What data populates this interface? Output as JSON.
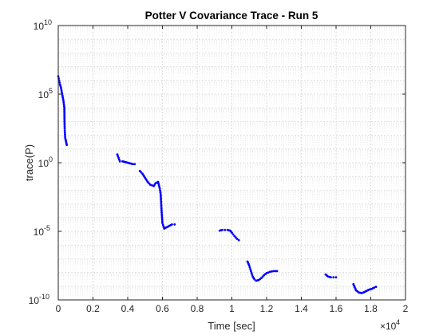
{
  "chart_data": {
    "type": "scatter",
    "title": "Potter V Covariance Trace - Run 5",
    "xlabel": "Time [sec]",
    "ylabel": "trace(P)",
    "x_exponent_label": "×10",
    "x_exponent_power": "4",
    "xlim": [
      0,
      20000
    ],
    "ylim_exponent": [
      -10,
      10
    ],
    "yscale": "log",
    "grid": true,
    "marker_color": "#0000ff",
    "x_ticks": [
      {
        "value": 0,
        "label": "0"
      },
      {
        "value": 2000,
        "label": "0.2"
      },
      {
        "value": 4000,
        "label": "0.4"
      },
      {
        "value": 6000,
        "label": "0.6"
      },
      {
        "value": 8000,
        "label": "0.8"
      },
      {
        "value": 10000,
        "label": "1"
      },
      {
        "value": 12000,
        "label": "1.2"
      },
      {
        "value": 14000,
        "label": "1.4"
      },
      {
        "value": 16000,
        "label": "1.6"
      },
      {
        "value": 18000,
        "label": "1.8"
      },
      {
        "value": 20000,
        "label": "2"
      }
    ],
    "y_ticks": [
      {
        "exp": 10,
        "base": "10",
        "power": "10"
      },
      {
        "exp": 5,
        "base": "10",
        "power": "5"
      },
      {
        "exp": 0,
        "base": "10",
        "power": "0"
      },
      {
        "exp": -5,
        "base": "10",
        "power": "-5"
      },
      {
        "exp": -10,
        "base": "10",
        "power": "-10"
      }
    ],
    "segments": [
      {
        "points": [
          [
            0,
            6.3
          ],
          [
            50,
            6.0
          ],
          [
            100,
            5.7
          ],
          [
            150,
            5.5
          ],
          [
            300,
            4.5
          ],
          [
            350,
            4.0
          ],
          [
            360,
            3.0
          ],
          [
            370,
            2.5
          ],
          [
            380,
            2.2
          ],
          [
            400,
            1.8
          ],
          [
            440,
            1.6
          ],
          [
            470,
            1.4
          ],
          [
            490,
            1.3
          ]
        ]
      },
      {
        "points": [
          [
            3400,
            0.6
          ],
          [
            3550,
            0.1
          ],
          [
            3700,
            0.1
          ],
          [
            3850,
            0.05
          ],
          [
            4000,
            0.0
          ],
          [
            4150,
            -0.05
          ],
          [
            4300,
            -0.1
          ],
          [
            4400,
            -0.1
          ]
        ]
      },
      {
        "points": [
          [
            4700,
            -0.6
          ],
          [
            4850,
            -0.8
          ],
          [
            5000,
            -1.1
          ],
          [
            5150,
            -1.4
          ],
          [
            5300,
            -1.6
          ],
          [
            5500,
            -1.7
          ],
          [
            5600,
            -1.5
          ],
          [
            5750,
            -1.4
          ],
          [
            5850,
            -1.9
          ],
          [
            5900,
            -2.3
          ],
          [
            5950,
            -3.5
          ],
          [
            6000,
            -4.4
          ],
          [
            6100,
            -4.8
          ],
          [
            6250,
            -4.7
          ],
          [
            6400,
            -4.6
          ],
          [
            6550,
            -4.5
          ],
          [
            6700,
            -4.5
          ]
        ]
      },
      {
        "points": [
          [
            9300,
            -4.95
          ],
          [
            9450,
            -4.9
          ],
          [
            9600,
            -4.9
          ],
          [
            9750,
            -4.9
          ],
          [
            9900,
            -4.95
          ],
          [
            10000,
            -5.1
          ],
          [
            10150,
            -5.35
          ],
          [
            10300,
            -5.55
          ],
          [
            10400,
            -5.65
          ]
        ]
      },
      {
        "points": [
          [
            10900,
            -7.2
          ],
          [
            11000,
            -7.5
          ],
          [
            11100,
            -7.9
          ],
          [
            11200,
            -8.3
          ],
          [
            11300,
            -8.5
          ],
          [
            11400,
            -8.6
          ],
          [
            11550,
            -8.55
          ],
          [
            11700,
            -8.4
          ],
          [
            11850,
            -8.2
          ],
          [
            12000,
            -8.05
          ],
          [
            12200,
            -7.95
          ],
          [
            12400,
            -7.9
          ],
          [
            12600,
            -7.9
          ]
        ]
      },
      {
        "points": [
          [
            15400,
            -8.15
          ],
          [
            15550,
            -8.3
          ],
          [
            15700,
            -8.35
          ],
          [
            15850,
            -8.35
          ],
          [
            16000,
            -8.35
          ]
        ]
      },
      {
        "points": [
          [
            17000,
            -8.85
          ],
          [
            17150,
            -9.3
          ],
          [
            17300,
            -9.45
          ],
          [
            17450,
            -9.5
          ],
          [
            17600,
            -9.45
          ],
          [
            17750,
            -9.35
          ],
          [
            17900,
            -9.25
          ],
          [
            18050,
            -9.2
          ],
          [
            18200,
            -9.1
          ],
          [
            18300,
            -9.05
          ]
        ]
      }
    ]
  }
}
